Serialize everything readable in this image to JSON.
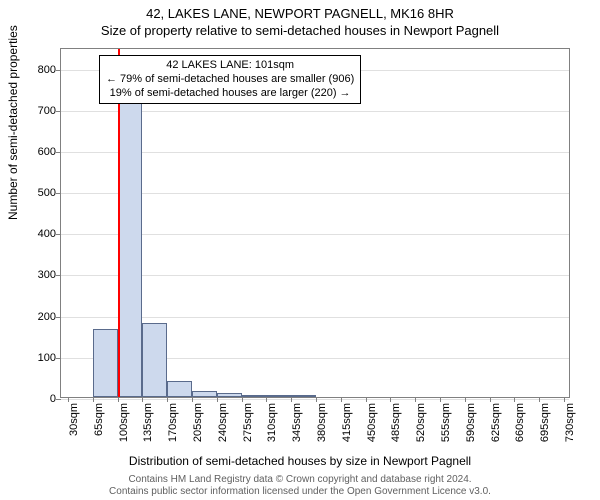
{
  "title": {
    "line1": "42, LAKES LANE, NEWPORT PAGNELL, MK16 8HR",
    "line2": "Size of property relative to semi-detached houses in Newport Pagnell"
  },
  "chart": {
    "type": "histogram",
    "ylabel": "Number of semi-detached properties",
    "xlabel": "Distribution of semi-detached houses by size in Newport Pagnell",
    "ylim": [
      0,
      850
    ],
    "yticks": [
      0,
      100,
      200,
      300,
      400,
      500,
      600,
      700,
      800
    ],
    "xlim": [
      20,
      740
    ],
    "xticks": [
      30,
      65,
      100,
      135,
      170,
      205,
      240,
      275,
      310,
      345,
      380,
      415,
      450,
      485,
      520,
      555,
      590,
      625,
      660,
      695,
      730
    ],
    "xtick_labels": [
      "30sqm",
      "65sqm",
      "100sqm",
      "135sqm",
      "170sqm",
      "205sqm",
      "240sqm",
      "275sqm",
      "310sqm",
      "345sqm",
      "380sqm",
      "415sqm",
      "450sqm",
      "485sqm",
      "520sqm",
      "555sqm",
      "590sqm",
      "625sqm",
      "660sqm",
      "695sqm",
      "730sqm"
    ],
    "bin_width": 35,
    "bins": [
      {
        "start": 30,
        "value": 0
      },
      {
        "start": 65,
        "value": 165
      },
      {
        "start": 100,
        "value": 740
      },
      {
        "start": 135,
        "value": 180
      },
      {
        "start": 170,
        "value": 40
      },
      {
        "start": 205,
        "value": 15
      },
      {
        "start": 240,
        "value": 10
      },
      {
        "start": 275,
        "value": 5
      },
      {
        "start": 310,
        "value": 2
      },
      {
        "start": 345,
        "value": 1
      },
      {
        "start": 380,
        "value": 0
      }
    ],
    "bar_color": "#cdd9ed",
    "bar_border": "#5a6b8c",
    "marker_x": 101,
    "marker_color": "#ff0000",
    "grid_color": "#e0e0e0",
    "axis_color": "#808080",
    "background_color": "#ffffff"
  },
  "callout": {
    "line1": "42 LAKES LANE: 101sqm",
    "line2": "← 79% of semi-detached houses are smaller (906)",
    "line3": "19% of semi-detached houses are larger (220) →"
  },
  "footer": {
    "line1": "Contains HM Land Registry data © Crown copyright and database right 2024.",
    "line2": "Contains public sector information licensed under the Open Government Licence v3.0."
  }
}
